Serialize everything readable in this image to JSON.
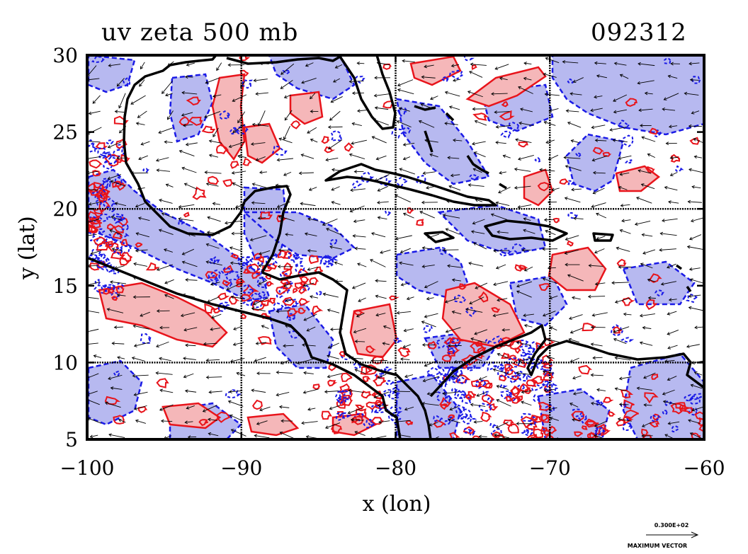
{
  "title": {
    "left": "uv zeta 500 mb",
    "right": "092312"
  },
  "axes": {
    "xlabel": "x (lon)",
    "ylabel": "y (lat)",
    "x_ticks": [
      -100,
      -90,
      -80,
      -70,
      -60
    ],
    "y_ticks": [
      5,
      10,
      15,
      20,
      25,
      30
    ],
    "x_tick_labels": [
      "−100",
      "−90",
      "−80",
      "−70",
      "−60"
    ],
    "y_tick_labels": [
      "5",
      "10",
      "15",
      "20",
      "25",
      "30"
    ],
    "xlim": [
      -100,
      -60
    ],
    "ylim": [
      5,
      30
    ],
    "gridlines_lon": [
      -90,
      -80,
      -70
    ],
    "gridlines_lat": [
      10,
      20
    ]
  },
  "vector_legend": {
    "value": "0.300E+02",
    "label": "MAXIMUM VECTOR"
  },
  "colors": {
    "positive_fill": "#f5b7b9",
    "positive_line": "#e8141b",
    "negative_fill": "#b7b9f0",
    "negative_line": "#1a1ae6",
    "coast": "#000000",
    "vector": "#000000"
  },
  "layers": [
    "zeta-positive-contours",
    "zeta-negative-contours",
    "wind-vectors",
    "coastlines"
  ]
}
